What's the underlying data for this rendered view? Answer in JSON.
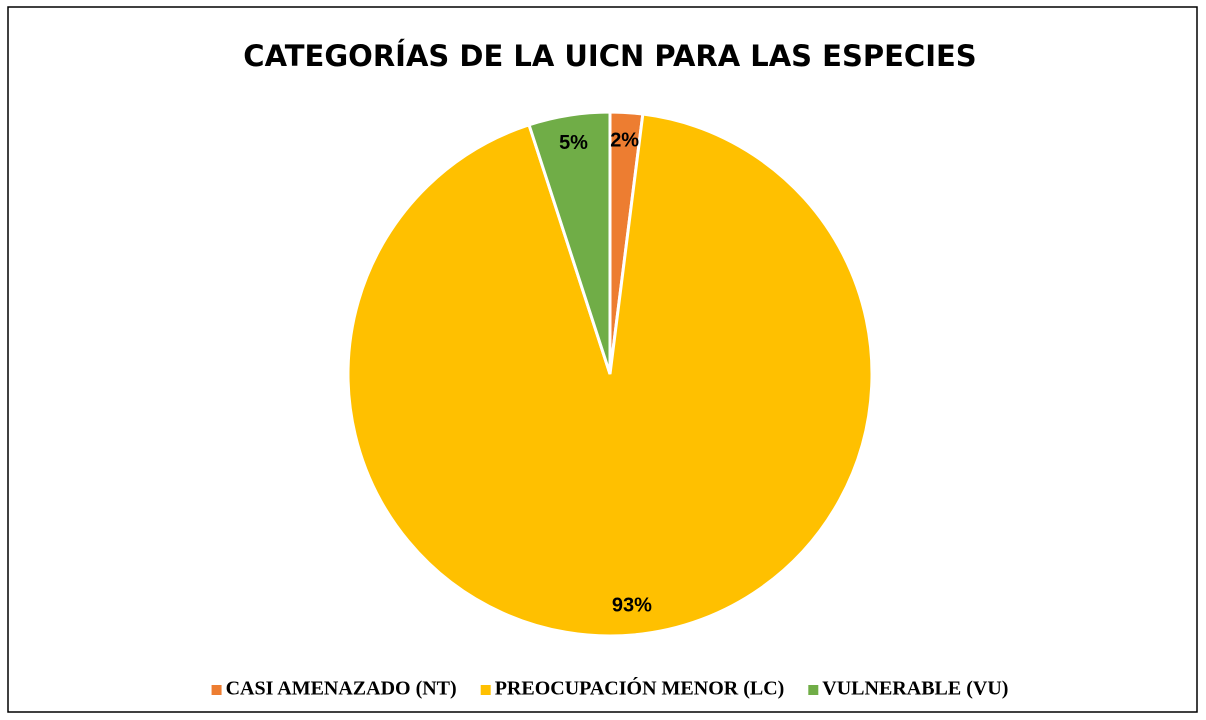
{
  "chart_data": {
    "type": "pie",
    "title": "CATEGORÍAS DE LA UICN PARA LAS ESPECIES",
    "categories": [
      "CASI AMENAZADO (NT)",
      "PREOCUPACIÓN MENOR (LC)",
      "VULNERABLE (VU)"
    ],
    "values": [
      2,
      93,
      5
    ],
    "value_labels": [
      "2%",
      "93%",
      "5%"
    ],
    "colors": [
      "#ed7d31",
      "#ffc000",
      "#70ad47"
    ],
    "legend": "bottom"
  }
}
